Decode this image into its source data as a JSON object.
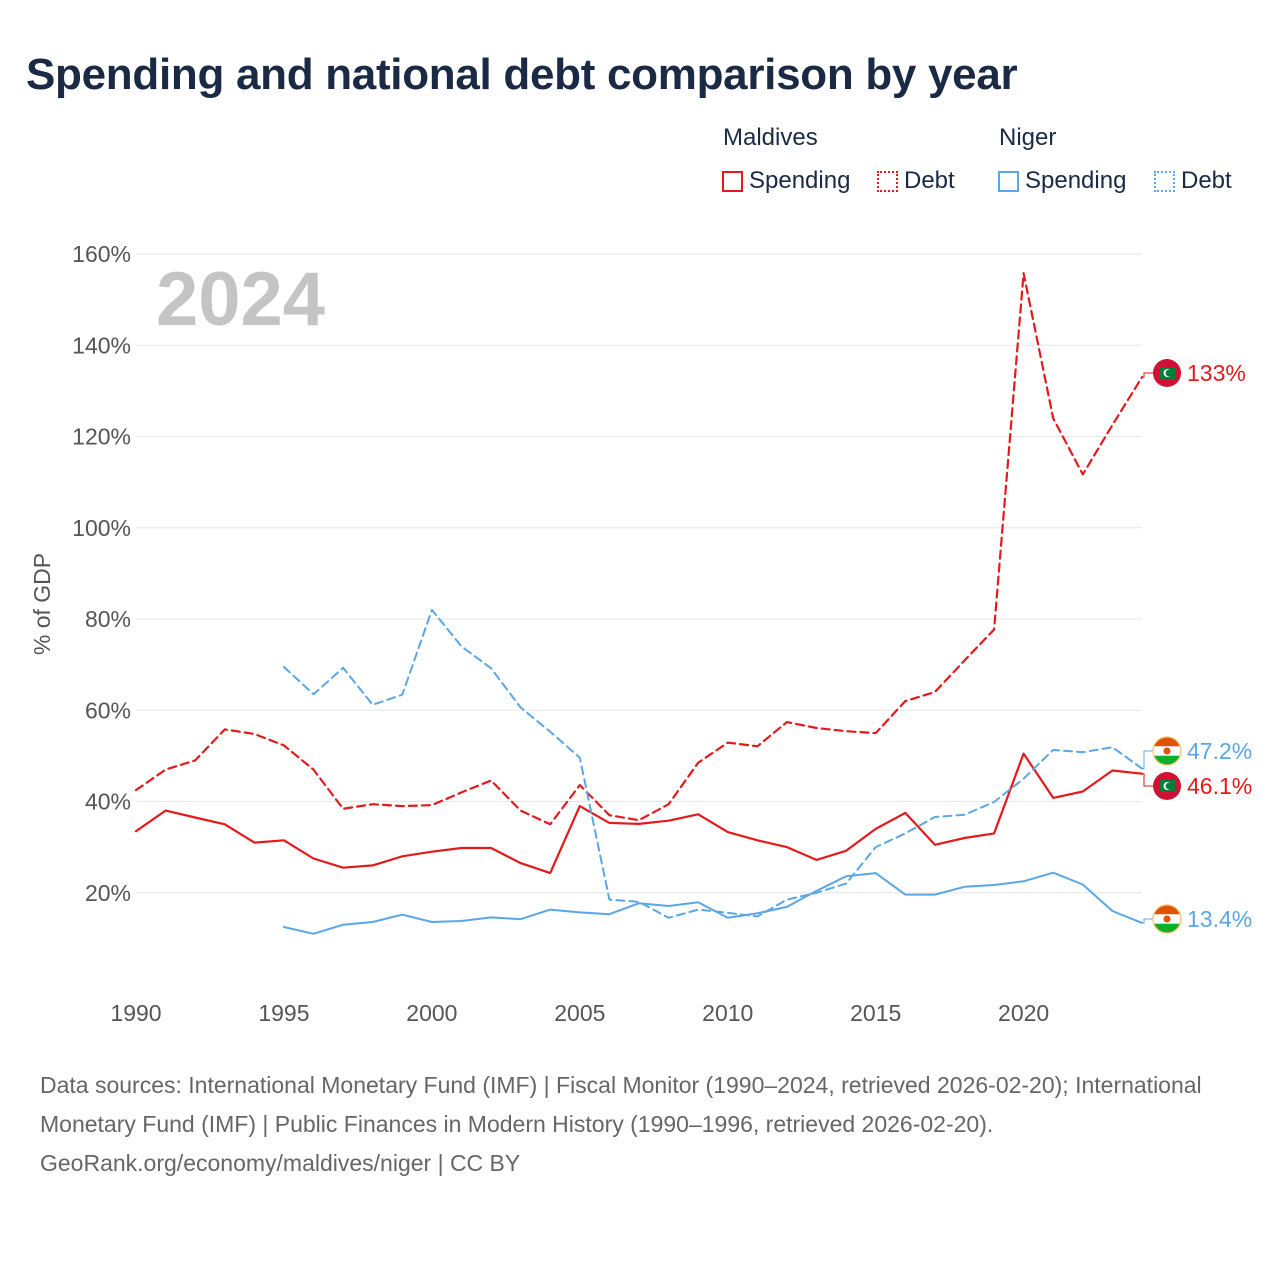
{
  "title": "Spending and national debt comparison by year",
  "colors": {
    "maldives": "#e31a1c",
    "niger": "#5aa6e6",
    "grid": "#e6e6e6",
    "axis_text": "#555555",
    "watermark": "#c4c4c4"
  },
  "legend": {
    "groups": [
      {
        "name": "Maldives",
        "items": [
          {
            "label": "Spending",
            "style": "solid"
          },
          {
            "label": "Debt",
            "style": "dotted"
          }
        ]
      },
      {
        "name": "Niger",
        "items": [
          {
            "label": "Spending",
            "style": "solid"
          },
          {
            "label": "Debt",
            "style": "dotted"
          }
        ]
      }
    ]
  },
  "chart_data": {
    "type": "line",
    "ylabel": "% of GDP",
    "xlim": [
      1990,
      2024
    ],
    "ylim": [
      0,
      160
    ],
    "x_ticks": [
      1990,
      1995,
      2000,
      2005,
      2010,
      2015,
      2020
    ],
    "y_ticks": [
      20,
      40,
      60,
      80,
      100,
      120,
      140,
      160
    ],
    "y_tick_labels": [
      "20%",
      "40%",
      "60%",
      "80%",
      "100%",
      "120%",
      "140%",
      "160%"
    ],
    "watermark_year": "2024",
    "grid": true,
    "series": [
      {
        "name": "Maldives Spending",
        "country": "maldives",
        "style": "solid",
        "end_label": "46.1%",
        "x": [
          1990,
          1991,
          1992,
          1993,
          1994,
          1995,
          1996,
          1997,
          1998,
          1999,
          2000,
          2001,
          2002,
          2003,
          2004,
          2005,
          2006,
          2007,
          2008,
          2009,
          2010,
          2011,
          2012,
          2013,
          2014,
          2015,
          2016,
          2017,
          2018,
          2019,
          2020,
          2021,
          2022,
          2023,
          2024
        ],
        "values": [
          33.5,
          38,
          36.5,
          35,
          31,
          31.5,
          27.5,
          25.5,
          26,
          28,
          29,
          29.8,
          29.8,
          26.5,
          24.3,
          39,
          35.3,
          35.1,
          35.8,
          37.2,
          33.3,
          31.5,
          30,
          27.2,
          29.2,
          34,
          37.5,
          30.5,
          32,
          33,
          50.5,
          40.8,
          42.2,
          46.8,
          46.1
        ]
      },
      {
        "name": "Maldives Debt",
        "country": "maldives",
        "style": "dashed",
        "end_label": "133%",
        "x": [
          1990,
          1991,
          1992,
          1993,
          1994,
          1995,
          1996,
          1997,
          1998,
          1999,
          2000,
          2001,
          2002,
          2003,
          2004,
          2005,
          2006,
          2007,
          2008,
          2009,
          2010,
          2011,
          2012,
          2013,
          2014,
          2015,
          2016,
          2017,
          2018,
          2019,
          2020,
          2021,
          2022,
          2023,
          2024
        ],
        "values": [
          42.5,
          47,
          49,
          55.8,
          54.8,
          52.3,
          47,
          38.4,
          39.4,
          39,
          39.2,
          42,
          44.6,
          38,
          35,
          43.6,
          37,
          35.9,
          39.4,
          48.5,
          52.9,
          52.1,
          57.4,
          56.1,
          55.4,
          55,
          62,
          64,
          70.9,
          77.7,
          155.8,
          124,
          111.7,
          122.5,
          133
        ]
      },
      {
        "name": "Niger Spending",
        "country": "niger",
        "style": "solid",
        "end_label": "13.4%",
        "x": [
          1995,
          1996,
          1997,
          1998,
          1999,
          2000,
          2001,
          2002,
          2003,
          2004,
          2005,
          2006,
          2007,
          2008,
          2009,
          2010,
          2011,
          2012,
          2013,
          2014,
          2015,
          2016,
          2017,
          2018,
          2019,
          2020,
          2021,
          2022,
          2023,
          2024
        ],
        "values": [
          12.5,
          11,
          13,
          13.6,
          15.2,
          13.6,
          13.8,
          14.6,
          14.2,
          16.3,
          15.7,
          15.3,
          17.7,
          17.1,
          17.9,
          14.5,
          15.5,
          16.9,
          20.4,
          23.6,
          24.3,
          19.6,
          19.6,
          21.3,
          21.7,
          22.5,
          24.4,
          21.8,
          16,
          13.4
        ]
      },
      {
        "name": "Niger Debt",
        "country": "niger",
        "style": "dashed",
        "end_label": "47.2%",
        "x": [
          1995,
          1996,
          1997,
          1998,
          1999,
          2000,
          2001,
          2002,
          2003,
          2004,
          2005,
          2006,
          2007,
          2008,
          2009,
          2010,
          2011,
          2012,
          2013,
          2014,
          2015,
          2016,
          2017,
          2018,
          2019,
          2020,
          2021,
          2022,
          2023,
          2024
        ],
        "values": [
          69.5,
          63.5,
          69.3,
          61.2,
          63.4,
          82,
          74,
          69.2,
          60.6,
          55.3,
          49.6,
          18.5,
          18,
          14.5,
          16.3,
          15.6,
          14.8,
          18.5,
          20,
          22,
          30,
          33,
          36.6,
          37.1,
          39.9,
          45,
          51.3,
          50.8,
          51.9,
          47.2
        ]
      }
    ]
  },
  "footer": {
    "sources": "Data sources: International Monetary Fund (IMF) | Fiscal Monitor (1990–2024, retrieved 2026-02-20); International Monetary Fund (IMF) | Public Finances in Modern History (1990–1996, retrieved 2026-02-20).",
    "credit": "GeoRank.org/economy/maldives/niger | CC BY"
  }
}
